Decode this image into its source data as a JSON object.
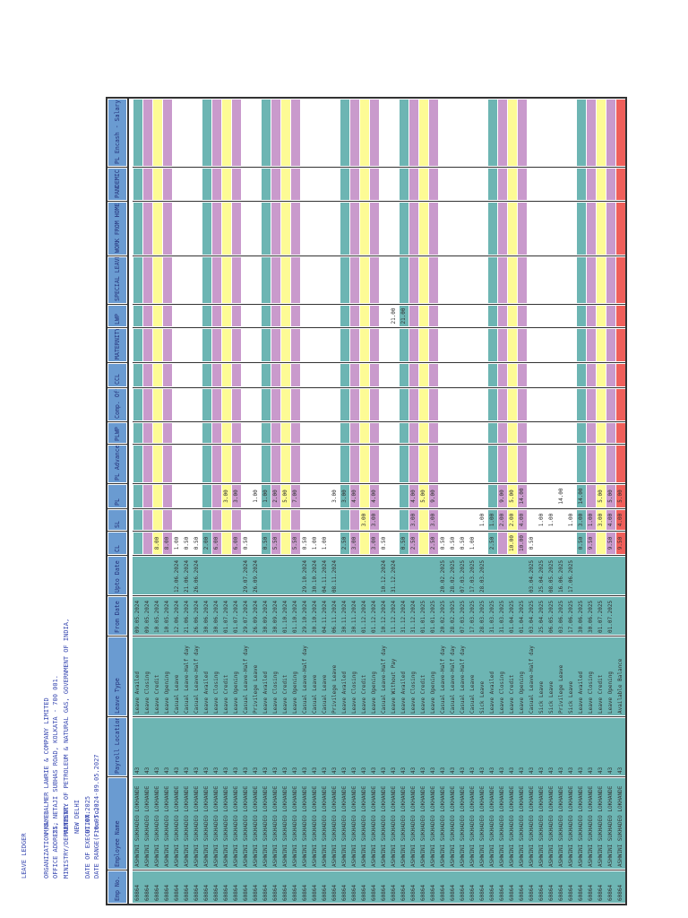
{
  "title": "LEAVE LEDGER",
  "info": [
    {
      "label": "ORGANIZATION NAME:",
      "value": "M/S. BALMER LAWRIE & COMPANY LIMITED"
    },
    {
      "label": "OFFICE ADDRESS:",
      "value": "21, NETAJI SUBHAS ROAD, KOLKATA - 700 001."
    },
    {
      "label": "MINISTRY/DEPARTMENT:",
      "value": "MINISTRY OF PETROLEUM & NATURAL GAS, GOVERNMENT OF INDIA,"
    },
    {
      "label": "",
      "value": "NEW DELHI"
    },
    {
      "label": "DATE OF EXECUTION:",
      "value": "01.07.2025"
    },
    {
      "label": "DATE RANGE(From-To):",
      "value": "10.05.2024-09.05.2027"
    }
  ],
  "columns": [
    "Emp No.",
    "Employee Name",
    "Payroll Location",
    "Leave Type",
    "From Date",
    "Upto Date",
    "CL",
    "SL",
    "PL",
    "PL Advance",
    "PLWP",
    "Comp. Off",
    "CCL",
    "MATERNITY",
    "LWP",
    "SPECIAL LEAVE",
    "WORK FROM HOME",
    "PANDEMIC",
    "PL Encash - Salary"
  ],
  "colors": {
    "header": "#6a9bd1",
    "base": "#6db5b3",
    "Leave Availed": "#6db5b3",
    "Leave Closing": "#c99acc",
    "Leave Credit": "#fdfb95",
    "Leave Opening": "#c99acc",
    "Available Balance": "#ef5f5a"
  },
  "employee": {
    "emp_no": "60864",
    "name": "ASHWINI SUKHADEO LOKHANDE",
    "payroll_location": "43"
  },
  "rows": [
    {
      "type": "Leave Availed",
      "from": "09.05.2024",
      "upto": "",
      "vals": {}
    },
    {
      "type": "Leave Closing",
      "from": "09.05.2024",
      "upto": "",
      "vals": {}
    },
    {
      "type": "Leave Credit",
      "from": "10.05.2024",
      "upto": "",
      "vals": {
        "CL": "8.00"
      }
    },
    {
      "type": "Leave Opening",
      "from": "10.05.2024",
      "upto": "",
      "vals": {
        "CL": "8.00"
      }
    },
    {
      "type": "Casual Leave",
      "from": "12.06.2024",
      "upto": "12.06.2024",
      "vals": {
        "CL": "1.00"
      }
    },
    {
      "type": "Casual Leave-Half day",
      "from": "21.06.2024",
      "upto": "21.06.2024",
      "vals": {
        "CL": "0.50"
      }
    },
    {
      "type": "Casual Leave-Half day",
      "from": "26.06.2024",
      "upto": "26.06.2024",
      "vals": {
        "CL": "0.50"
      }
    },
    {
      "type": "Leave Availed",
      "from": "30.06.2024",
      "upto": "",
      "vals": {
        "CL": "2.00"
      }
    },
    {
      "type": "Leave Closing",
      "from": "30.06.2024",
      "upto": "",
      "vals": {
        "CL": "6.00"
      }
    },
    {
      "type": "Leave Credit",
      "from": "01.07.2024",
      "upto": "",
      "vals": {
        "PL": "3.00"
      }
    },
    {
      "type": "Leave Opening",
      "from": "01.07.2024",
      "upto": "",
      "vals": {
        "CL": "6.00",
        "PL": "3.00"
      }
    },
    {
      "type": "Casual Leave-Half day",
      "from": "29.07.2024",
      "upto": "29.07.2024",
      "vals": {
        "CL": "0.50"
      }
    },
    {
      "type": "Privilege Leave",
      "from": "26.09.2024",
      "upto": "26.09.2024",
      "vals": {
        "PL": "1.00"
      }
    },
    {
      "type": "Leave Availed",
      "from": "30.09.2024",
      "upto": "",
      "vals": {
        "CL": "0.50",
        "PL": "1.00"
      }
    },
    {
      "type": "Leave Closing",
      "from": "30.09.2024",
      "upto": "",
      "vals": {
        "CL": "5.50",
        "PL": "2.00"
      }
    },
    {
      "type": "Leave Credit",
      "from": "01.10.2024",
      "upto": "",
      "vals": {
        "PL": "5.00"
      }
    },
    {
      "type": "Leave Opening",
      "from": "01.10.2024",
      "upto": "",
      "vals": {
        "CL": "5.50",
        "PL": "7.00"
      }
    },
    {
      "type": "Casual Leave-Half day",
      "from": "29.10.2024",
      "upto": "29.10.2024",
      "vals": {
        "CL": "0.50"
      }
    },
    {
      "type": "Casual Leave",
      "from": "30.10.2024",
      "upto": "30.10.2024",
      "vals": {
        "CL": "1.00"
      }
    },
    {
      "type": "Casual Leave",
      "from": "04.11.2024",
      "upto": "04.11.2024",
      "vals": {
        "CL": "1.00"
      }
    },
    {
      "type": "Privilege Leave",
      "from": "06.11.2024",
      "upto": "08.11.2024",
      "vals": {
        "PL": "3.00"
      }
    },
    {
      "type": "Leave Availed",
      "from": "30.11.2024",
      "upto": "",
      "vals": {
        "CL": "2.50",
        "PL": "3.00"
      }
    },
    {
      "type": "Leave Closing",
      "from": "30.11.2024",
      "upto": "",
      "vals": {
        "CL": "3.00",
        "PL": "4.00"
      }
    },
    {
      "type": "Leave Credit",
      "from": "01.12.2024",
      "upto": "",
      "vals": {
        "SL": "3.00"
      }
    },
    {
      "type": "Leave Opening",
      "from": "01.12.2024",
      "upto": "",
      "vals": {
        "CL": "3.00",
        "SL": "3.00",
        "PL": "4.00"
      }
    },
    {
      "type": "Casual Leave-Half day",
      "from": "10.12.2024",
      "upto": "10.12.2024",
      "vals": {
        "CL": "0.50"
      }
    },
    {
      "type": "Leave Without Pay",
      "from": "11.12.2024",
      "upto": "31.12.2024",
      "vals": {
        "LWP": "21.00"
      }
    },
    {
      "type": "Leave Availed",
      "from": "31.12.2024",
      "upto": "",
      "vals": {
        "CL": "0.50",
        "LWP": "21.00"
      }
    },
    {
      "type": "Leave Closing",
      "from": "31.12.2024",
      "upto": "",
      "vals": {
        "CL": "2.50",
        "SL": "3.00",
        "PL": "4.00"
      }
    },
    {
      "type": "Leave Credit",
      "from": "01.01.2025",
      "upto": "",
      "vals": {
        "PL": "5.00"
      }
    },
    {
      "type": "Leave Opening",
      "from": "01.01.2025",
      "upto": "",
      "vals": {
        "CL": "2.50",
        "SL": "3.00",
        "PL": "9.00"
      }
    },
    {
      "type": "Casual Leave-Half day",
      "from": "20.02.2025",
      "upto": "20.02.2025",
      "vals": {
        "CL": "0.50"
      }
    },
    {
      "type": "Casual Leave-Half day",
      "from": "28.02.2025",
      "upto": "28.02.2025",
      "vals": {
        "CL": "0.50"
      }
    },
    {
      "type": "Casual Leave-Half day",
      "from": "07.03.2025",
      "upto": "07.03.2025",
      "vals": {
        "CL": "0.50"
      }
    },
    {
      "type": "Casual Leave",
      "from": "17.03.2025",
      "upto": "17.03.2025",
      "vals": {
        "CL": "1.00"
      }
    },
    {
      "type": "Sick Leave",
      "from": "28.03.2025",
      "upto": "28.03.2025",
      "vals": {
        "SL": "1.00"
      }
    },
    {
      "type": "Leave Availed",
      "from": "31.03.2025",
      "upto": "",
      "vals": {
        "CL": "2.50",
        "SL": "1.00"
      }
    },
    {
      "type": "Leave Closing",
      "from": "31.03.2025",
      "upto": "",
      "vals": {
        "SL": "2.00",
        "PL": "9.00"
      }
    },
    {
      "type": "Leave Credit",
      "from": "01.04.2025",
      "upto": "",
      "vals": {
        "CL": "10.00",
        "SL": "2.00",
        "PL": "5.00"
      }
    },
    {
      "type": "Leave Opening",
      "from": "01.04.2025",
      "upto": "",
      "vals": {
        "CL": "10.00",
        "SL": "4.00",
        "PL": "14.00"
      }
    },
    {
      "type": "Casual Leave-Half day",
      "from": "03.04.2025",
      "upto": "03.04.2025",
      "vals": {
        "CL": "0.50"
      }
    },
    {
      "type": "Sick Leave",
      "from": "25.04.2025",
      "upto": "25.04.2025",
      "vals": {
        "SL": "1.00"
      }
    },
    {
      "type": "Sick Leave",
      "from": "06.05.2025",
      "upto": "08.05.2025",
      "vals": {
        "SL": "1.00"
      }
    },
    {
      "type": "Privilege Leave",
      "from": "03.06.2025",
      "upto": "16.06.2025",
      "vals": {
        "PL": "14.00"
      }
    },
    {
      "type": "Sick Leave",
      "from": "17.06.2025",
      "upto": "17.06.2025",
      "vals": {
        "SL": "1.00"
      }
    },
    {
      "type": "Leave Availed",
      "from": "30.06.2025",
      "upto": "",
      "vals": {
        "CL": "0.50",
        "SL": "3.00",
        "PL": "14.00"
      }
    },
    {
      "type": "Leave Closing",
      "from": "30.06.2025",
      "upto": "",
      "vals": {
        "CL": "9.50",
        "SL": "1.00"
      }
    },
    {
      "type": "Leave Credit",
      "from": "01.07.2025",
      "upto": "",
      "vals": {
        "SL": "3.00",
        "PL": "5.00"
      }
    },
    {
      "type": "Leave Opening",
      "from": "01.07.2025",
      "upto": "",
      "vals": {
        "CL": "9.50",
        "SL": "4.00",
        "PL": "5.00"
      }
    },
    {
      "type": "Available Balance",
      "from": "",
      "upto": "",
      "vals": {
        "CL": "9.50",
        "SL": "4.00",
        "PL": "5.00"
      }
    }
  ]
}
